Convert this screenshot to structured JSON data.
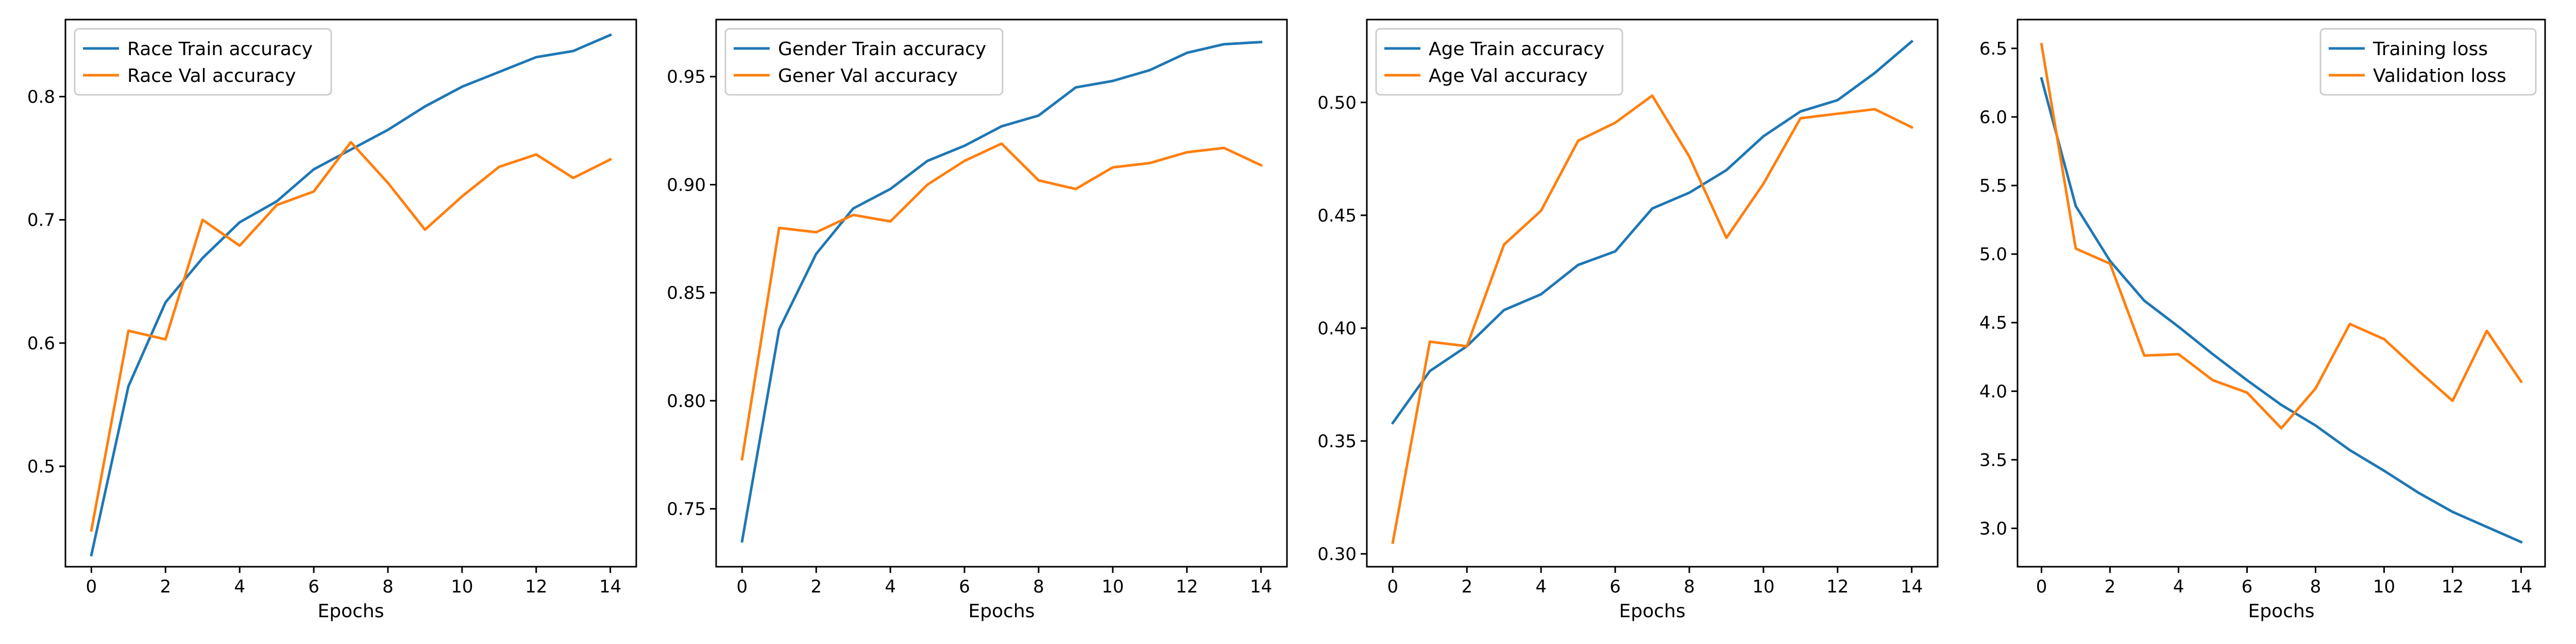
{
  "colors": {
    "train": "#1f77b4",
    "val": "#ff7f0e"
  },
  "chart_data": [
    {
      "type": "line",
      "xlabel": "Epochs",
      "ylabel": "",
      "x": [
        0,
        1,
        2,
        3,
        4,
        5,
        6,
        7,
        8,
        9,
        10,
        11,
        12,
        13,
        14
      ],
      "xlim": [
        -0.7,
        14.7
      ],
      "ylim": [
        0.4185,
        0.8625
      ],
      "xticks": [
        0,
        2,
        4,
        6,
        8,
        10,
        12,
        14
      ],
      "xtick_labels": [
        "0",
        "2",
        "4",
        "6",
        "8",
        "10",
        "12",
        "14"
      ],
      "yticks": [
        0.5,
        0.6,
        0.7,
        0.8
      ],
      "ytick_labels": [
        "0.5",
        "0.6",
        "0.7",
        "0.8"
      ],
      "legend_position": "top-left",
      "series": [
        {
          "name": "Race Train accuracy",
          "color_key": "train",
          "values": [
            0.428,
            0.565,
            0.633,
            0.669,
            0.698,
            0.715,
            0.741,
            0.757,
            0.773,
            0.792,
            0.808,
            0.82,
            0.832,
            0.837,
            0.85
          ]
        },
        {
          "name": "Race Val accuracy",
          "color_key": "val",
          "values": [
            0.448,
            0.61,
            0.603,
            0.7,
            0.679,
            0.712,
            0.723,
            0.763,
            0.73,
            0.692,
            0.719,
            0.743,
            0.753,
            0.734,
            0.749
          ]
        }
      ]
    },
    {
      "type": "line",
      "xlabel": "Epochs",
      "ylabel": "",
      "x": [
        0,
        1,
        2,
        3,
        4,
        5,
        6,
        7,
        8,
        9,
        10,
        11,
        12,
        13,
        14
      ],
      "xlim": [
        -0.7,
        14.7
      ],
      "ylim": [
        0.7232,
        0.9764
      ],
      "xticks": [
        0,
        2,
        4,
        6,
        8,
        10,
        12,
        14
      ],
      "xtick_labels": [
        "0",
        "2",
        "4",
        "6",
        "8",
        "10",
        "12",
        "14"
      ],
      "yticks": [
        0.75,
        0.8,
        0.85,
        0.9,
        0.95
      ],
      "ytick_labels": [
        "0.75",
        "0.80",
        "0.85",
        "0.90",
        "0.95"
      ],
      "legend_position": "top-left",
      "series": [
        {
          "name": "Gender Train accuracy",
          "color_key": "train",
          "values": [
            0.735,
            0.833,
            0.868,
            0.889,
            0.898,
            0.911,
            0.918,
            0.927,
            0.932,
            0.945,
            0.948,
            0.953,
            0.961,
            0.965,
            0.966
          ]
        },
        {
          "name": "Gener Val accuracy",
          "color_key": "val",
          "values": [
            0.773,
            0.88,
            0.878,
            0.886,
            0.883,
            0.9,
            0.911,
            0.919,
            0.902,
            0.898,
            0.908,
            0.91,
            0.915,
            0.917,
            0.909
          ]
        }
      ]
    },
    {
      "type": "line",
      "xlabel": "Epochs",
      "ylabel": "",
      "x": [
        0,
        1,
        2,
        3,
        4,
        5,
        6,
        7,
        8,
        9,
        10,
        11,
        12,
        13,
        14
      ],
      "xlim": [
        -0.7,
        14.7
      ],
      "ylim": [
        0.2943,
        0.5367
      ],
      "xticks": [
        0,
        2,
        4,
        6,
        8,
        10,
        12,
        14
      ],
      "xtick_labels": [
        "0",
        "2",
        "4",
        "6",
        "8",
        "10",
        "12",
        "14"
      ],
      "yticks": [
        0.3,
        0.35,
        0.4,
        0.45,
        0.5
      ],
      "ytick_labels": [
        "0.30",
        "0.35",
        "0.40",
        "0.45",
        "0.50"
      ],
      "legend_position": "top-left",
      "series": [
        {
          "name": "Age Train accuracy",
          "color_key": "train",
          "values": [
            0.358,
            0.381,
            0.392,
            0.408,
            0.415,
            0.428,
            0.434,
            0.453,
            0.46,
            0.47,
            0.485,
            0.496,
            0.501,
            0.513,
            0.527
          ]
        },
        {
          "name": "Age Val accuracy",
          "color_key": "val",
          "values": [
            0.305,
            0.394,
            0.392,
            0.437,
            0.452,
            0.483,
            0.491,
            0.503,
            0.476,
            0.44,
            0.464,
            0.493,
            0.495,
            0.497,
            0.489
          ]
        }
      ]
    },
    {
      "type": "line",
      "xlabel": "Epochs",
      "ylabel": "",
      "x": [
        0,
        1,
        2,
        3,
        4,
        5,
        6,
        7,
        8,
        9,
        10,
        11,
        12,
        13,
        14
      ],
      "xlim": [
        -0.7,
        14.7
      ],
      "ylim": [
        2.72,
        6.71
      ],
      "xticks": [
        0,
        2,
        4,
        6,
        8,
        10,
        12,
        14
      ],
      "xtick_labels": [
        "0",
        "2",
        "4",
        "6",
        "8",
        "10",
        "12",
        "14"
      ],
      "yticks": [
        3.0,
        3.5,
        4.0,
        4.5,
        5.0,
        5.5,
        6.0,
        6.5
      ],
      "ytick_labels": [
        "3.0",
        "3.5",
        "4.0",
        "4.5",
        "5.0",
        "5.5",
        "6.0",
        "6.5"
      ],
      "legend_position": "top-right",
      "series": [
        {
          "name": "Training loss",
          "color_key": "train",
          "values": [
            6.28,
            5.35,
            4.95,
            4.66,
            4.47,
            4.27,
            4.08,
            3.9,
            3.75,
            3.57,
            3.42,
            3.26,
            3.12,
            3.01,
            2.9
          ]
        },
        {
          "name": "Validation loss",
          "color_key": "val",
          "values": [
            6.53,
            5.04,
            4.93,
            4.26,
            4.27,
            4.08,
            3.99,
            3.73,
            4.02,
            4.49,
            4.38,
            4.15,
            3.93,
            4.44,
            4.07
          ]
        }
      ]
    }
  ]
}
